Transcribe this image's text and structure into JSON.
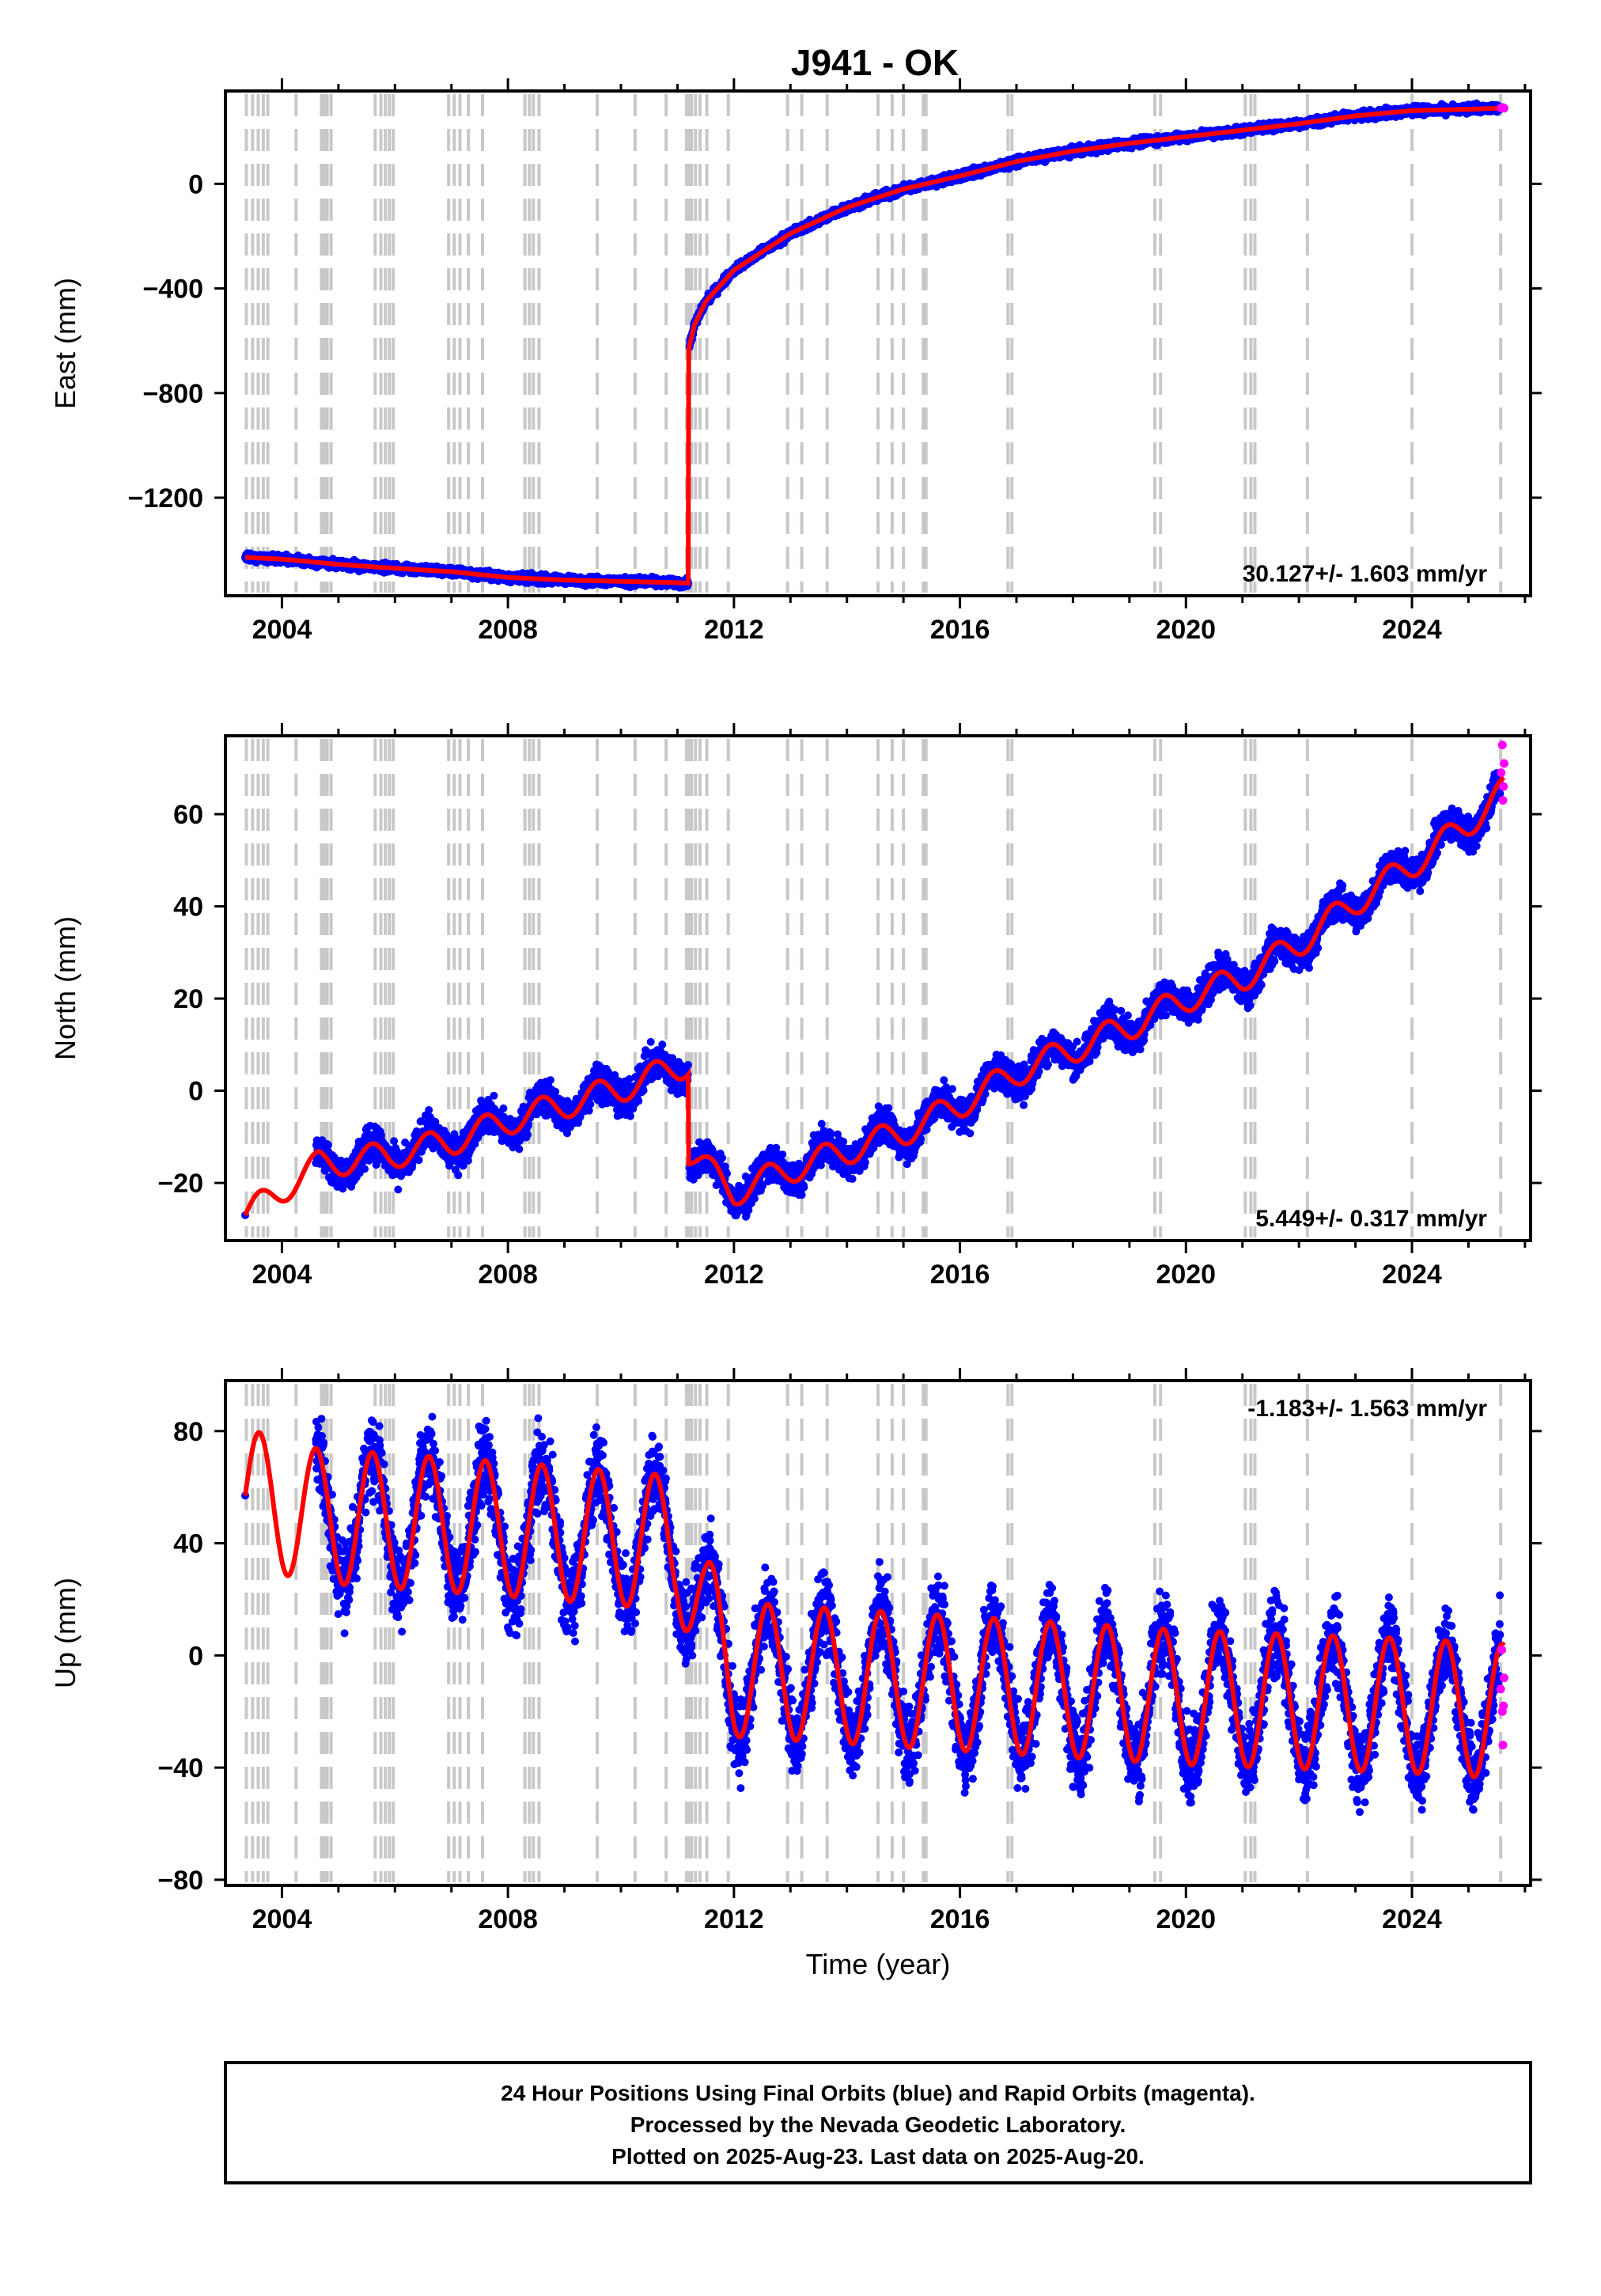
{
  "title": "J941 - OK",
  "footer": {
    "line1": "24 Hour Positions Using Final Orbits (blue) and Rapid Orbits (magenta).",
    "line2": "Processed by the Nevada Geodetic Laboratory.",
    "line3": "Plotted on 2025-Aug-23. Last data on 2025-Aug-20."
  },
  "colors": {
    "final_orbits": "#0000ff",
    "rapid_orbits": "#ff00ff",
    "model": "#ff0000",
    "step_lines": "#c8c8c8"
  },
  "chart_data": [
    {
      "type": "scatter",
      "component": "east",
      "ylabel": "East (mm)",
      "xlabel": "",
      "rate": "30.127+/- 1.603 mm/yr",
      "rate_position": "bottom-right",
      "xlim": [
        2003.0,
        2026.1
      ],
      "ylim": [
        -1575,
        355
      ],
      "xticks": [
        2004,
        2008,
        2012,
        2016,
        2020,
        2024
      ],
      "yticks": [
        0,
        -400,
        -800,
        -1200
      ],
      "ytick_labels": [
        "0",
        "−400",
        "−800",
        "−1200"
      ],
      "trend": [
        [
          2003.35,
          -1428
        ],
        [
          2004.0,
          -1435
        ],
        [
          2005.0,
          -1455
        ],
        [
          2006.0,
          -1470
        ],
        [
          2007.0,
          -1483
        ],
        [
          2008.0,
          -1505
        ],
        [
          2009.0,
          -1515
        ],
        [
          2010.0,
          -1520
        ],
        [
          2011.0,
          -1525
        ],
        [
          2011.19,
          -1527
        ],
        [
          2011.2,
          -630
        ],
        [
          2011.3,
          -540
        ],
        [
          2011.5,
          -450
        ],
        [
          2012.0,
          -330
        ],
        [
          2013.0,
          -190
        ],
        [
          2014.0,
          -90
        ],
        [
          2015.0,
          -20
        ],
        [
          2016.0,
          30
        ],
        [
          2017.0,
          85
        ],
        [
          2018.0,
          125
        ],
        [
          2019.0,
          155
        ],
        [
          2020.0,
          180
        ],
        [
          2021.0,
          205
        ],
        [
          2022.0,
          230
        ],
        [
          2023.0,
          260
        ],
        [
          2024.0,
          280
        ],
        [
          2025.0,
          285
        ],
        [
          2025.63,
          290
        ]
      ],
      "noise_mm": 8,
      "rapid_points": [
        [
          2025.58,
          290
        ],
        [
          2025.61,
          292
        ],
        [
          2025.63,
          289
        ]
      ]
    },
    {
      "type": "scatter",
      "component": "north",
      "ylabel": "North (mm)",
      "xlabel": "",
      "rate": "5.449+/- 0.317 mm/yr",
      "rate_position": "bottom-right",
      "xlim": [
        2003.0,
        2026.1
      ],
      "ylim": [
        -32.5,
        77
      ],
      "xticks": [
        2004,
        2008,
        2012,
        2016,
        2020,
        2024
      ],
      "yticks": [
        60,
        40,
        20,
        0,
        -20
      ],
      "ytick_labels": [
        "60",
        "40",
        "20",
        "0",
        "−20"
      ],
      "trend": [
        [
          2003.35,
          -27
        ],
        [
          2004.65,
          -16
        ],
        [
          2005.9,
          -14
        ],
        [
          2007.0,
          -11
        ],
        [
          2008.0,
          -6.5
        ],
        [
          2009.0,
          -3
        ],
        [
          2010.0,
          0.5
        ],
        [
          2011.19,
          6
        ],
        [
          2011.2,
          -13.5
        ],
        [
          2012.0,
          -22
        ],
        [
          2013.0,
          -17
        ],
        [
          2014.0,
          -13
        ],
        [
          2015.0,
          -9
        ],
        [
          2016.0,
          -3
        ],
        [
          2017.0,
          4
        ],
        [
          2018.0,
          9
        ],
        [
          2019.0,
          14
        ],
        [
          2020.0,
          20
        ],
        [
          2021.0,
          24.5
        ],
        [
          2022.0,
          32
        ],
        [
          2023.0,
          41
        ],
        [
          2024.0,
          49
        ],
        [
          2025.0,
          58
        ],
        [
          2025.63,
          65
        ]
      ],
      "seasonal_amp": 3,
      "noise_mm": 1.8,
      "data_start": 2004.6,
      "rapid_points": [
        [
          2025.58,
          69
        ],
        [
          2025.6,
          75
        ],
        [
          2025.61,
          63
        ],
        [
          2025.62,
          66
        ],
        [
          2025.63,
          71
        ]
      ]
    },
    {
      "type": "scatter",
      "component": "up",
      "ylabel": "Up (mm)",
      "xlabel": "Time (year)",
      "rate": "-1.183+/- 1.563 mm/yr",
      "rate_position": "top-right",
      "xlim": [
        2003.0,
        2026.1
      ],
      "ylim": [
        -82,
        98
      ],
      "xticks": [
        2004,
        2008,
        2012,
        2016,
        2020,
        2024
      ],
      "yticks": [
        80,
        40,
        0,
        -40,
        -80
      ],
      "ytick_labels": [
        "80",
        "40",
        "0",
        "−40",
        "−80"
      ],
      "trend": [
        [
          2003.35,
          57
        ],
        [
          2004.5,
          50
        ],
        [
          2008.0,
          45
        ],
        [
          2011.0,
          40
        ],
        [
          2011.5,
          12
        ],
        [
          2012.0,
          -5
        ],
        [
          2016.0,
          -10
        ],
        [
          2020.0,
          -15
        ],
        [
          2024.0,
          -18
        ],
        [
          2025.63,
          -20
        ]
      ],
      "seasonal_amp": 24,
      "noise_mm": 7,
      "data_start": 2004.6,
      "rapid_points": [
        [
          2025.57,
          -12
        ],
        [
          2025.59,
          2
        ],
        [
          2025.6,
          -20
        ],
        [
          2025.61,
          -32
        ],
        [
          2025.62,
          -18
        ],
        [
          2025.63,
          -8
        ]
      ]
    }
  ],
  "step_lines": [
    2003.37,
    2003.48,
    2003.58,
    2003.67,
    2003.75,
    2004.25,
    2004.7,
    2004.75,
    2004.8,
    2004.87,
    2005.65,
    2005.75,
    2005.83,
    2005.9,
    2005.97,
    2006.95,
    2007.05,
    2007.15,
    2007.3,
    2007.55,
    2008.3,
    2008.38,
    2008.45,
    2008.55,
    2009.58,
    2010.25,
    2010.8,
    2011.16,
    2011.2,
    2011.25,
    2011.32,
    2011.4,
    2011.52,
    2011.9,
    2012.95,
    2013.2,
    2013.65,
    2014.55,
    2014.8,
    2015.0,
    2015.35,
    2015.4,
    2016.85,
    2016.92,
    2019.45,
    2019.55,
    2021.05,
    2021.15,
    2021.22,
    2022.15,
    2024.0,
    2025.57
  ]
}
